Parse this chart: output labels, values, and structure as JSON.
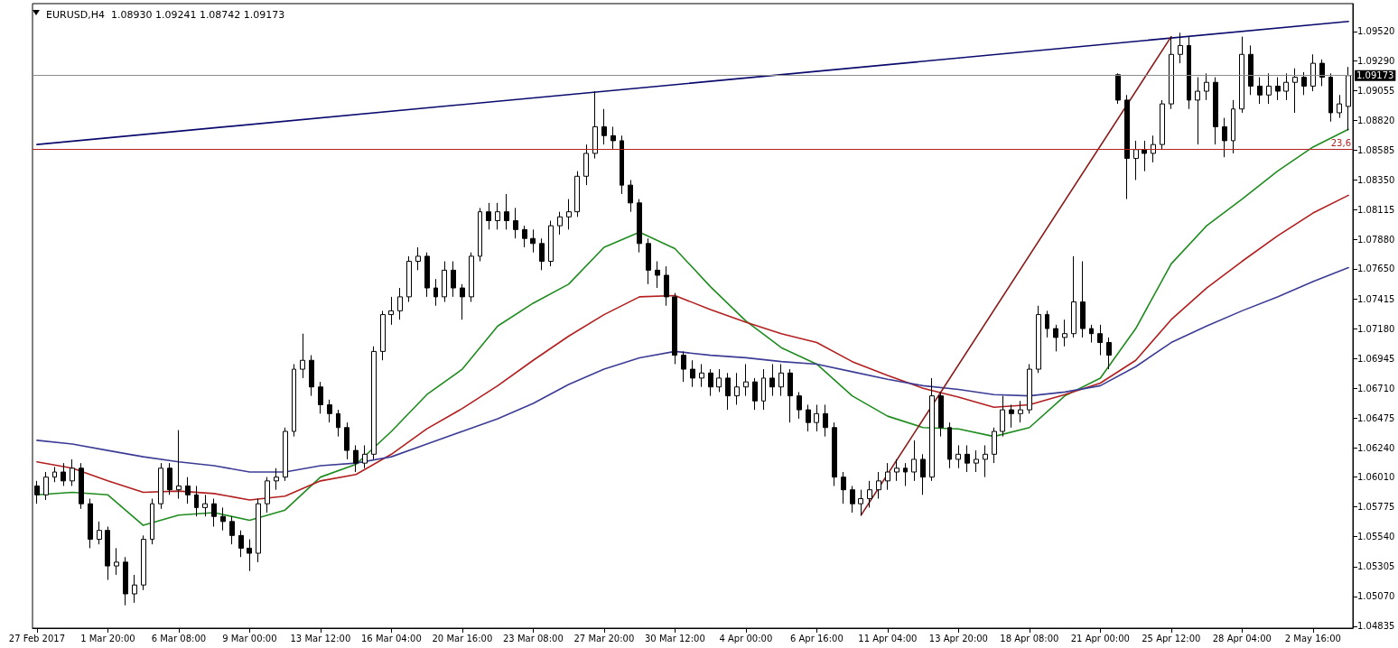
{
  "chart_data": {
    "type": "candlestick",
    "title": "EURUSD,H4  1.08930 1.09241 1.08742 1.09173",
    "categories": [
      "27 Feb 2017",
      null,
      null,
      null,
      null,
      null,
      null,
      null,
      "1 Mar 20:00",
      null,
      null,
      null,
      null,
      null,
      null,
      null,
      "6 Mar 08:00",
      null,
      null,
      null,
      null,
      null,
      null,
      null,
      "9 Mar 00:00",
      null,
      null,
      null,
      null,
      null,
      null,
      null,
      "13 Mar 12:00",
      null,
      null,
      null,
      null,
      null,
      null,
      null,
      "16 Mar 04:00",
      null,
      null,
      null,
      null,
      null,
      null,
      null,
      "20 Mar 16:00",
      null,
      null,
      null,
      null,
      null,
      null,
      null,
      "23 Mar 08:00",
      null,
      null,
      null,
      null,
      null,
      null,
      null,
      "27 Mar 20:00",
      null,
      null,
      null,
      null,
      null,
      null,
      null,
      "30 Mar 12:00",
      null,
      null,
      null,
      null,
      null,
      null,
      null,
      "4 Apr 00:00",
      null,
      null,
      null,
      null,
      null,
      null,
      null,
      "6 Apr 16:00",
      null,
      null,
      null,
      null,
      null,
      null,
      null,
      "11 Apr 04:00",
      null,
      null,
      null,
      null,
      null,
      null,
      null,
      "13 Apr 20:00",
      null,
      null,
      null,
      null,
      null,
      null,
      null,
      "18 Apr 08:00",
      null,
      null,
      null,
      null,
      null,
      null,
      null,
      "21 Apr 00:00",
      null,
      null,
      null,
      null,
      null,
      null,
      null,
      "25 Apr 12:00",
      null,
      null,
      null,
      null,
      null,
      null,
      null,
      "28 Apr 04:00",
      null,
      null,
      null,
      null,
      null,
      null,
      null,
      "2 May 16:00",
      null,
      null,
      null,
      null
    ],
    "ohlc": [
      [
        1.0594,
        1.0598,
        1.058,
        1.0587
      ],
      [
        1.0587,
        1.0605,
        1.0583,
        1.0601
      ],
      [
        1.0601,
        1.0609,
        1.0597,
        1.0605
      ],
      [
        1.0605,
        1.0612,
        1.0594,
        1.0598
      ],
      [
        1.0598,
        1.0615,
        1.0594,
        1.0608
      ],
      [
        1.0608,
        1.0612,
        1.0576,
        1.058
      ],
      [
        1.058,
        1.0584,
        1.0545,
        1.0552
      ],
      [
        1.0552,
        1.0566,
        1.0548,
        1.0559
      ],
      [
        1.0559,
        1.0562,
        1.052,
        1.0531
      ],
      [
        1.0531,
        1.0545,
        1.0524,
        1.0534
      ],
      [
        1.0534,
        1.0538,
        1.05,
        1.0509
      ],
      [
        1.0509,
        1.0524,
        1.0502,
        1.0516
      ],
      [
        1.0516,
        1.0555,
        1.0512,
        1.0552
      ],
      [
        1.0552,
        1.0584,
        1.0548,
        1.058
      ],
      [
        1.058,
        1.0612,
        1.0576,
        1.0608
      ],
      [
        1.0608,
        1.0612,
        1.0587,
        1.0591
      ],
      [
        1.0591,
        1.0638,
        1.0584,
        1.0594
      ],
      [
        1.0594,
        1.0601,
        1.058,
        1.0587
      ],
      [
        1.0587,
        1.0594,
        1.057,
        1.0577
      ],
      [
        1.0577,
        1.0587,
        1.057,
        1.058
      ],
      [
        1.058,
        1.0584,
        1.0562,
        1.057
      ],
      [
        1.057,
        1.0577,
        1.0559,
        1.0566
      ],
      [
        1.0566,
        1.057,
        1.0548,
        1.0555
      ],
      [
        1.0555,
        1.0559,
        1.0538,
        1.0545
      ],
      [
        1.0545,
        1.0552,
        1.0527,
        1.0541
      ],
      [
        1.0541,
        1.0584,
        1.0534,
        1.058
      ],
      [
        1.058,
        1.0601,
        1.0573,
        1.0598
      ],
      [
        1.0598,
        1.0608,
        1.0591,
        1.0601
      ],
      [
        1.0601,
        1.064,
        1.0598,
        1.0637
      ],
      [
        1.0637,
        1.069,
        1.0633,
        1.0686
      ],
      [
        1.0686,
        1.0714,
        1.0679,
        1.0693
      ],
      [
        1.0693,
        1.0697,
        1.0665,
        1.0672
      ],
      [
        1.0672,
        1.0676,
        1.0651,
        1.0658
      ],
      [
        1.0658,
        1.0662,
        1.0644,
        1.0651
      ],
      [
        1.0651,
        1.0654,
        1.0633,
        1.064
      ],
      [
        1.064,
        1.0644,
        1.0615,
        1.0622
      ],
      [
        1.0622,
        1.0626,
        1.0605,
        1.0612
      ],
      [
        1.0612,
        1.0626,
        1.0608,
        1.0619
      ],
      [
        1.0619,
        1.0704,
        1.0615,
        1.07
      ],
      [
        1.07,
        1.0732,
        1.0693,
        1.0729
      ],
      [
        1.0729,
        1.0743,
        1.0721,
        1.0732
      ],
      [
        1.0732,
        1.075,
        1.0725,
        1.0743
      ],
      [
        1.0743,
        1.0775,
        1.0739,
        1.0771
      ],
      [
        1.0771,
        1.0782,
        1.0764,
        1.0775
      ],
      [
        1.0775,
        1.0778,
        1.0743,
        1.075
      ],
      [
        1.075,
        1.0757,
        1.0736,
        1.0743
      ],
      [
        1.0743,
        1.0771,
        1.0739,
        1.0764
      ],
      [
        1.0764,
        1.0771,
        1.0743,
        1.075
      ],
      [
        1.075,
        1.0753,
        1.0725,
        1.0743
      ],
      [
        1.0743,
        1.0778,
        1.0739,
        1.0775
      ],
      [
        1.0775,
        1.0813,
        1.0771,
        1.081
      ],
      [
        1.081,
        1.0817,
        1.0796,
        1.0803
      ],
      [
        1.0803,
        1.0817,
        1.0796,
        1.081
      ],
      [
        1.081,
        1.0824,
        1.0796,
        1.0803
      ],
      [
        1.0803,
        1.0813,
        1.0789,
        1.0796
      ],
      [
        1.0796,
        1.0799,
        1.0782,
        1.0789
      ],
      [
        1.0789,
        1.0796,
        1.0778,
        1.0785
      ],
      [
        1.0785,
        1.0789,
        1.0764,
        1.0771
      ],
      [
        1.0771,
        1.0803,
        1.0767,
        1.0799
      ],
      [
        1.0799,
        1.081,
        1.0792,
        1.0806
      ],
      [
        1.0806,
        1.082,
        1.0796,
        1.081
      ],
      [
        1.081,
        1.0842,
        1.0806,
        1.0838
      ],
      [
        1.0838,
        1.0863,
        1.0831,
        1.0856
      ],
      [
        1.0856,
        1.0905,
        1.0852,
        1.0877
      ],
      [
        1.0877,
        1.0891,
        1.0863,
        1.087
      ],
      [
        1.087,
        1.0877,
        1.0859,
        1.0866
      ],
      [
        1.0866,
        1.087,
        1.0824,
        1.0831
      ],
      [
        1.0831,
        1.0835,
        1.081,
        1.0817
      ],
      [
        1.0817,
        1.082,
        1.0778,
        1.0785
      ],
      [
        1.0785,
        1.0789,
        1.0753,
        1.0764
      ],
      [
        1.0764,
        1.0771,
        1.075,
        1.076
      ],
      [
        1.076,
        1.0767,
        1.0736,
        1.0743
      ],
      [
        1.0743,
        1.0746,
        1.069,
        1.0697
      ],
      [
        1.0697,
        1.07,
        1.0676,
        1.0686
      ],
      [
        1.0686,
        1.0693,
        1.0672,
        1.0679
      ],
      [
        1.0679,
        1.069,
        1.0672,
        1.0683
      ],
      [
        1.0683,
        1.0686,
        1.0665,
        1.0672
      ],
      [
        1.0672,
        1.0686,
        1.0668,
        1.0679
      ],
      [
        1.0679,
        1.0683,
        1.0654,
        1.0665
      ],
      [
        1.0665,
        1.0683,
        1.0658,
        1.0672
      ],
      [
        1.0672,
        1.069,
        1.0665,
        1.0676
      ],
      [
        1.0676,
        1.0679,
        1.0654,
        1.0661
      ],
      [
        1.0661,
        1.0686,
        1.0654,
        1.0679
      ],
      [
        1.0679,
        1.069,
        1.0665,
        1.0672
      ],
      [
        1.0672,
        1.069,
        1.0665,
        1.0683
      ],
      [
        1.0683,
        1.0686,
        1.0644,
        1.0665
      ],
      [
        1.0665,
        1.0668,
        1.0647,
        1.0654
      ],
      [
        1.0654,
        1.0658,
        1.0637,
        1.0644
      ],
      [
        1.0644,
        1.0658,
        1.0637,
        1.0651
      ],
      [
        1.0651,
        1.0658,
        1.0633,
        1.064
      ],
      [
        1.064,
        1.0644,
        1.0594,
        1.0601
      ],
      [
        1.0601,
        1.0605,
        1.058,
        1.0591
      ],
      [
        1.0591,
        1.0594,
        1.0573,
        1.058
      ],
      [
        1.058,
        1.0591,
        1.0571,
        1.0584
      ],
      [
        1.0584,
        1.0598,
        1.0577,
        1.0591
      ],
      [
        1.0591,
        1.0605,
        1.0584,
        1.0598
      ],
      [
        1.0598,
        1.0612,
        1.0591,
        1.0605
      ],
      [
        1.0605,
        1.0615,
        1.0598,
        1.0608
      ],
      [
        1.0608,
        1.0612,
        1.0594,
        1.0605
      ],
      [
        1.0605,
        1.063,
        1.0598,
        1.0615
      ],
      [
        1.0615,
        1.0619,
        1.0587,
        1.0601
      ],
      [
        1.0601,
        1.0679,
        1.0598,
        1.0665
      ],
      [
        1.0665,
        1.0668,
        1.0633,
        1.064
      ],
      [
        1.064,
        1.0644,
        1.0608,
        1.0615
      ],
      [
        1.0615,
        1.0626,
        1.0608,
        1.0619
      ],
      [
        1.0619,
        1.0626,
        1.0605,
        1.0612
      ],
      [
        1.0612,
        1.0622,
        1.0605,
        1.0615
      ],
      [
        1.0615,
        1.0626,
        1.0601,
        1.0619
      ],
      [
        1.0619,
        1.064,
        1.0612,
        1.0637
      ],
      [
        1.0637,
        1.0665,
        1.0633,
        1.0654
      ],
      [
        1.0654,
        1.0658,
        1.064,
        1.0651
      ],
      [
        1.0651,
        1.0661,
        1.0644,
        1.0654
      ],
      [
        1.0654,
        1.069,
        1.0651,
        1.0686
      ],
      [
        1.0686,
        1.0736,
        1.0683,
        1.0729
      ],
      [
        1.0729,
        1.0732,
        1.0711,
        1.0718
      ],
      [
        1.0718,
        1.0721,
        1.07,
        1.0711
      ],
      [
        1.0711,
        1.0725,
        1.0704,
        1.0714
      ],
      [
        1.0714,
        1.0775,
        1.0711,
        1.0739
      ],
      [
        1.0739,
        1.0771,
        1.0711,
        1.0718
      ],
      [
        1.0718,
        1.0721,
        1.0707,
        1.0714
      ],
      [
        1.0714,
        1.0721,
        1.0697,
        1.0707
      ],
      [
        1.0707,
        1.0711,
        1.0686,
        1.0697
      ],
      [
        1.0918,
        1.0919,
        1.0895,
        1.0898
      ],
      [
        1.0898,
        1.0902,
        1.082,
        1.0852
      ],
      [
        1.0852,
        1.0866,
        1.0835,
        1.0859
      ],
      [
        1.0859,
        1.0866,
        1.0842,
        1.0856
      ],
      [
        1.0856,
        1.087,
        1.0849,
        1.0863
      ],
      [
        1.0863,
        1.0898,
        1.0859,
        1.0895
      ],
      [
        1.0895,
        1.0948,
        1.0891,
        1.0934
      ],
      [
        1.0934,
        1.0951,
        1.0927,
        1.0941
      ],
      [
        1.0941,
        1.0948,
        1.0891,
        1.0898
      ],
      [
        1.0898,
        1.0916,
        1.0863,
        1.0905
      ],
      [
        1.0905,
        1.0919,
        1.0898,
        1.0912
      ],
      [
        1.0912,
        1.0916,
        1.0863,
        1.0877
      ],
      [
        1.0877,
        1.0884,
        1.0853,
        1.0866
      ],
      [
        1.0866,
        1.0898,
        1.0856,
        1.0891
      ],
      [
        1.0891,
        1.0948,
        1.0888,
        1.0934
      ],
      [
        1.0934,
        1.0941,
        1.0902,
        1.0909
      ],
      [
        1.0909,
        1.0916,
        1.0895,
        1.0902
      ],
      [
        1.0902,
        1.0919,
        1.0895,
        1.0909
      ],
      [
        1.0909,
        1.0916,
        1.0898,
        1.0905
      ],
      [
        1.0905,
        1.0919,
        1.0898,
        1.0912
      ],
      [
        1.0912,
        1.0923,
        1.0888,
        1.0916
      ],
      [
        1.0916,
        1.092,
        1.0902,
        1.0909
      ],
      [
        1.0909,
        1.0934,
        1.0905,
        1.0927
      ],
      [
        1.0927,
        1.093,
        1.0909,
        1.0916
      ],
      [
        1.0916,
        1.0919,
        1.0881,
        1.0888
      ],
      [
        1.0888,
        1.0902,
        1.0884,
        1.0895
      ],
      [
        1.0893,
        1.09241,
        1.08742,
        1.09173
      ]
    ],
    "series": [
      {
        "type": "line",
        "color": "#1e8c1e",
        "values": [
          1.0587,
          null,
          null,
          null,
          1.0589,
          null,
          null,
          null,
          1.0587,
          null,
          null,
          null,
          1.0563,
          null,
          null,
          null,
          1.0571,
          null,
          null,
          null,
          1.0573,
          null,
          null,
          null,
          1.0567,
          null,
          null,
          null,
          1.0575,
          null,
          null,
          null,
          1.0601,
          null,
          null,
          null,
          1.0611,
          null,
          null,
          null,
          1.0637,
          null,
          null,
          null,
          1.0666,
          null,
          null,
          null,
          1.0686,
          null,
          null,
          null,
          1.072,
          null,
          null,
          null,
          1.0738,
          null,
          null,
          null,
          1.0753,
          null,
          null,
          null,
          1.0782,
          null,
          null,
          null,
          1.0794,
          null,
          null,
          null,
          1.0781,
          null,
          null,
          null,
          1.0751,
          null,
          null,
          null,
          1.0724,
          null,
          null,
          null,
          1.0703,
          null,
          null,
          null,
          1.069,
          null,
          null,
          null,
          1.0665,
          null,
          null,
          null,
          1.0649,
          null,
          null,
          null,
          1.064,
          null,
          null,
          null,
          1.0639,
          null,
          null,
          null,
          1.0633,
          null,
          null,
          null,
          1.064,
          null,
          null,
          null,
          1.0665,
          null,
          null,
          null,
          1.0679,
          null,
          null,
          null,
          1.0718,
          null,
          null,
          null,
          1.0769,
          null,
          null,
          null,
          1.0799,
          null,
          null,
          null,
          1.082,
          null,
          null,
          null,
          1.0842,
          null,
          null,
          null,
          1.0861,
          null,
          null,
          null,
          1.0875
        ]
      },
      {
        "type": "line",
        "color": "#b31e1e",
        "values": [
          1.0613,
          null,
          null,
          null,
          1.0608,
          null,
          null,
          null,
          1.0598,
          null,
          null,
          null,
          1.0589,
          null,
          null,
          null,
          1.059,
          null,
          null,
          null,
          1.0588,
          null,
          null,
          null,
          1.0583,
          null,
          null,
          null,
          1.0586,
          null,
          null,
          null,
          1.0598,
          null,
          null,
          null,
          1.0603,
          null,
          null,
          null,
          1.0619,
          null,
          null,
          null,
          1.0639,
          null,
          null,
          null,
          1.0655,
          null,
          null,
          null,
          1.0673,
          null,
          null,
          null,
          1.0693,
          null,
          null,
          null,
          1.0712,
          null,
          null,
          null,
          1.0729,
          null,
          null,
          null,
          1.0743,
          null,
          null,
          null,
          1.0744,
          null,
          null,
          null,
          1.0733,
          null,
          null,
          null,
          1.0723,
          null,
          null,
          null,
          1.0714,
          null,
          null,
          null,
          1.0707,
          null,
          null,
          null,
          1.0692,
          null,
          null,
          null,
          1.0681,
          null,
          null,
          null,
          1.0671,
          null,
          null,
          null,
          1.0664,
          null,
          null,
          null,
          1.0656,
          null,
          null,
          null,
          1.0658,
          null,
          null,
          null,
          1.0666,
          null,
          null,
          null,
          1.0675,
          null,
          null,
          null,
          1.0693,
          null,
          null,
          null,
          1.0725,
          null,
          null,
          null,
          1.075,
          null,
          null,
          null,
          1.0771,
          null,
          null,
          null,
          1.0791,
          null,
          null,
          null,
          1.0809,
          null,
          null,
          null,
          1.0823
        ]
      },
      {
        "type": "line",
        "color": "#3c3c96",
        "values": [
          1.063,
          null,
          null,
          null,
          1.0627,
          null,
          null,
          null,
          1.0622,
          null,
          null,
          null,
          1.0617,
          null,
          null,
          null,
          1.0613,
          null,
          null,
          null,
          1.061,
          null,
          null,
          null,
          1.0605,
          null,
          null,
          null,
          1.0605,
          null,
          null,
          null,
          1.061,
          null,
          null,
          null,
          1.0612,
          null,
          null,
          null,
          1.0617,
          null,
          null,
          null,
          1.0627,
          null,
          null,
          null,
          1.0637,
          null,
          null,
          null,
          1.0647,
          null,
          null,
          null,
          1.0659,
          null,
          null,
          null,
          1.0674,
          null,
          null,
          null,
          1.0686,
          null,
          null,
          null,
          1.0695,
          null,
          null,
          null,
          1.07,
          null,
          null,
          null,
          1.0697,
          null,
          null,
          null,
          1.0695,
          null,
          null,
          null,
          1.0692,
          null,
          null,
          null,
          1.069,
          null,
          null,
          null,
          1.0684,
          null,
          null,
          null,
          1.0678,
          null,
          null,
          null,
          1.0673,
          null,
          null,
          null,
          1.067,
          null,
          null,
          null,
          1.0666,
          null,
          null,
          null,
          1.0665,
          null,
          null,
          null,
          1.0668,
          null,
          null,
          null,
          1.0673,
          null,
          null,
          null,
          1.0688,
          null,
          null,
          null,
          1.0707,
          null,
          null,
          null,
          1.072,
          null,
          null,
          null,
          1.0732,
          null,
          null,
          null,
          1.0743,
          null,
          null,
          null,
          1.0755,
          null,
          null,
          null,
          1.0766
        ]
      },
      {
        "type": "line",
        "color": "#0a0a6e",
        "values": [
          1.0863,
          null,
          null,
          null,
          null,
          null,
          null,
          null,
          null,
          null,
          null,
          null,
          null,
          null,
          null,
          null,
          null,
          null,
          null,
          null,
          null,
          null,
          null,
          null,
          null,
          null,
          null,
          null,
          null,
          null,
          null,
          null,
          null,
          null,
          null,
          null,
          null,
          null,
          null,
          null,
          null,
          null,
          null,
          null,
          null,
          null,
          null,
          null,
          null,
          null,
          null,
          null,
          null,
          null,
          null,
          null,
          null,
          null,
          null,
          null,
          null,
          null,
          null,
          null,
          null,
          null,
          null,
          null,
          null,
          null,
          null,
          null,
          null,
          null,
          null,
          null,
          null,
          null,
          null,
          null,
          null,
          null,
          null,
          null,
          null,
          null,
          null,
          null,
          null,
          null,
          null,
          null,
          null,
          null,
          null,
          null,
          null,
          null,
          null,
          null,
          null,
          null,
          null,
          null,
          null,
          null,
          null,
          null,
          null,
          null,
          null,
          null,
          null,
          null,
          null,
          null,
          null,
          null,
          null,
          null,
          null,
          null,
          null,
          null,
          null,
          null,
          null,
          null,
          null,
          null,
          null,
          null,
          null,
          null,
          null,
          null,
          null,
          null,
          null,
          null,
          null,
          null,
          null,
          null,
          null,
          null,
          null,
          null,
          1.096
        ]
      },
      {
        "type": "line",
        "color": "#8b1a1a",
        "values": [
          null,
          null,
          null,
          null,
          null,
          null,
          null,
          null,
          null,
          null,
          null,
          null,
          null,
          null,
          null,
          null,
          null,
          null,
          null,
          null,
          null,
          null,
          null,
          null,
          null,
          null,
          null,
          null,
          null,
          null,
          null,
          null,
          null,
          null,
          null,
          null,
          null,
          null,
          null,
          null,
          null,
          null,
          null,
          null,
          null,
          null,
          null,
          null,
          null,
          null,
          null,
          null,
          null,
          null,
          null,
          null,
          null,
          null,
          null,
          null,
          null,
          null,
          null,
          null,
          null,
          null,
          null,
          null,
          null,
          null,
          null,
          null,
          null,
          null,
          null,
          null,
          null,
          null,
          null,
          null,
          null,
          null,
          null,
          null,
          null,
          null,
          null,
          null,
          null,
          null,
          null,
          null,
          null,
          1.0571,
          null,
          null,
          null,
          null,
          null,
          null,
          null,
          null,
          null,
          null,
          null,
          null,
          null,
          null,
          null,
          null,
          null,
          null,
          null,
          null,
          null,
          null,
          null,
          null,
          null,
          null,
          null,
          null,
          null,
          null,
          null,
          null,
          null,
          null,
          1.0948,
          null,
          null,
          null,
          null,
          null,
          null,
          null,
          null,
          null,
          null,
          null,
          null,
          null,
          null,
          null,
          null,
          null,
          null,
          null,
          null
        ]
      }
    ],
    "ylim": [
      1.0482,
      1.0974
    ],
    "yticks": [
      {
        "value": 1.0952,
        "label": "1.09520"
      },
      {
        "value": 1.0929,
        "label": "1.09290"
      },
      {
        "value": 1.09055,
        "label": "1.09055"
      },
      {
        "value": 1.0882,
        "label": "1.08820"
      },
      {
        "value": 1.08585,
        "label": "1.08585"
      },
      {
        "value": 1.0835,
        "label": "1.08350"
      },
      {
        "value": 1.08115,
        "label": "1.08115"
      },
      {
        "value": 1.0788,
        "label": "1.07880"
      },
      {
        "value": 1.0765,
        "label": "1.07650"
      },
      {
        "value": 1.07415,
        "label": "1.07415"
      },
      {
        "value": 1.0718,
        "label": "1.07180"
      },
      {
        "value": 1.06945,
        "label": "1.06945"
      },
      {
        "value": 1.0671,
        "label": "1.06710"
      },
      {
        "value": 1.06475,
        "label": "1.06475"
      },
      {
        "value": 1.0624,
        "label": "1.06240"
      },
      {
        "value": 1.0601,
        "label": "1.06010"
      },
      {
        "value": 1.05775,
        "label": "1.05775"
      },
      {
        "value": 1.0554,
        "label": "1.05540"
      },
      {
        "value": 1.05305,
        "label": "1.05305"
      },
      {
        "value": 1.0507,
        "label": "1.05070"
      },
      {
        "value": 1.04835,
        "label": "1.04835"
      }
    ],
    "ref_lines": [
      {
        "axis": "y",
        "value": 1.09173,
        "label": "1.09173",
        "color": "#8c8c8c"
      },
      {
        "axis": "y",
        "value": 1.0859,
        "color": "#b22222"
      }
    ],
    "annotations": [
      {
        "text": "23,6",
        "y": 1.0859
      }
    ],
    "grid": false,
    "marker": "none",
    "line_style": "solid"
  }
}
